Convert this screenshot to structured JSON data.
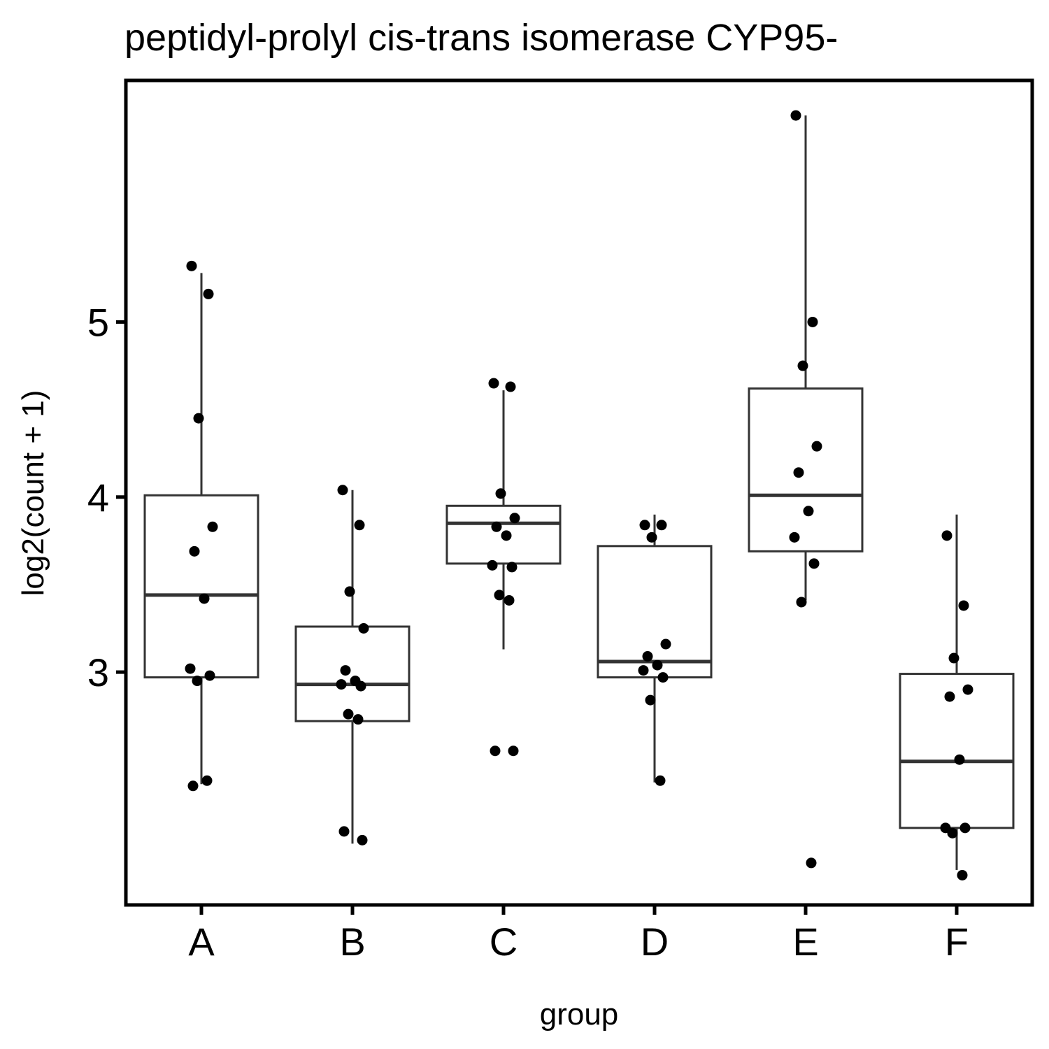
{
  "chart_data": {
    "type": "boxplot",
    "title": "peptidyl-prolyl cis-trans isomerase CYP95-",
    "xlabel": "group",
    "ylabel": "log2(count + 1)",
    "categories": [
      "A",
      "B",
      "C",
      "D",
      "E",
      "F"
    ],
    "y_ticks": [
      3,
      4,
      5
    ],
    "ylim": [
      1.67,
      6.38
    ],
    "colors": {
      "box": "#333333",
      "point": "#000000",
      "frame": "#000000"
    },
    "boxes": [
      {
        "group": "A",
        "whisker_low": 2.36,
        "q1": 2.97,
        "median": 3.44,
        "q3": 4.01,
        "whisker_high": 5.28
      },
      {
        "group": "B",
        "whisker_low": 2.02,
        "q1": 2.72,
        "median": 2.93,
        "q3": 3.26,
        "whisker_high": 4.04
      },
      {
        "group": "C",
        "whisker_low": 3.13,
        "q1": 3.62,
        "median": 3.85,
        "q3": 3.95,
        "whisker_high": 4.61
      },
      {
        "group": "D",
        "whisker_low": 2.37,
        "q1": 2.97,
        "median": 3.06,
        "q3": 3.72,
        "whisker_high": 3.9
      },
      {
        "group": "E",
        "whisker_low": 3.41,
        "q1": 3.69,
        "median": 4.01,
        "q3": 4.62,
        "whisker_high": 6.18
      },
      {
        "group": "F",
        "whisker_low": 1.87,
        "q1": 2.11,
        "median": 2.49,
        "q3": 2.99,
        "whisker_high": 3.9
      }
    ],
    "points": [
      {
        "group": "A",
        "values": [
          5.32,
          5.16,
          4.45,
          3.83,
          3.69,
          3.42,
          3.02,
          2.98,
          2.95,
          2.38,
          2.35
        ]
      },
      {
        "group": "B",
        "values": [
          4.04,
          3.84,
          3.46,
          3.25,
          3.01,
          2.95,
          2.93,
          2.92,
          2.76,
          2.73,
          2.09,
          2.04
        ]
      },
      {
        "group": "C",
        "values": [
          4.65,
          4.63,
          4.02,
          3.88,
          3.83,
          3.78,
          3.61,
          3.6,
          3.44,
          3.41,
          2.55,
          2.55
        ]
      },
      {
        "group": "D",
        "values": [
          3.84,
          3.84,
          3.77,
          3.16,
          3.09,
          3.04,
          3.01,
          2.97,
          2.84,
          2.38
        ]
      },
      {
        "group": "E",
        "values": [
          6.18,
          5.0,
          4.75,
          4.29,
          4.14,
          3.92,
          3.77,
          3.62,
          3.4,
          1.91
        ]
      },
      {
        "group": "F",
        "values": [
          3.78,
          3.38,
          3.08,
          2.9,
          2.86,
          2.5,
          2.11,
          2.11,
          2.08,
          1.84
        ]
      }
    ]
  }
}
